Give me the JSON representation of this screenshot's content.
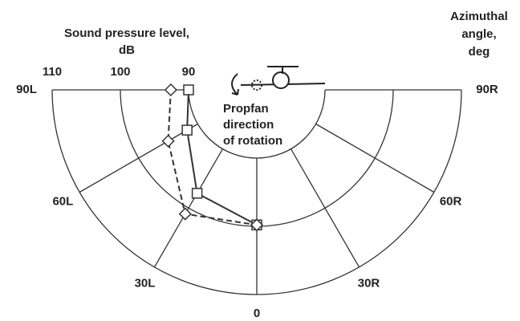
{
  "chart_data": {
    "type": "polar",
    "radial_axis_label": [
      "Sound pressure level,",
      "dB"
    ],
    "angular_axis_label": [
      "Azimuthal",
      "angle,",
      "deg"
    ],
    "annotation": [
      "Propfan",
      "direction",
      "of rotation"
    ],
    "x": [
      -90,
      -60,
      -30,
      0
    ],
    "rlim": [
      80,
      110
    ],
    "rticks": [
      90,
      100,
      110
    ],
    "xticks": [
      {
        "value": -90,
        "label": "90L"
      },
      {
        "value": -60,
        "label": "60L"
      },
      {
        "value": -30,
        "label": "30L"
      },
      {
        "value": 0,
        "label": "0"
      },
      {
        "value": 30,
        "label": "30R"
      },
      {
        "value": 60,
        "label": "60R"
      },
      {
        "value": 90,
        "label": "90R"
      }
    ],
    "series": [
      {
        "color": "#333333",
        "marker": "square",
        "line_style": "solid",
        "values": [
          90,
          91.8,
          97.5,
          99.8
        ]
      },
      {
        "color": "#333333",
        "marker": "diamond",
        "line_style": "dashed",
        "values": [
          92.6,
          95,
          101,
          99.8
        ]
      }
    ]
  }
}
